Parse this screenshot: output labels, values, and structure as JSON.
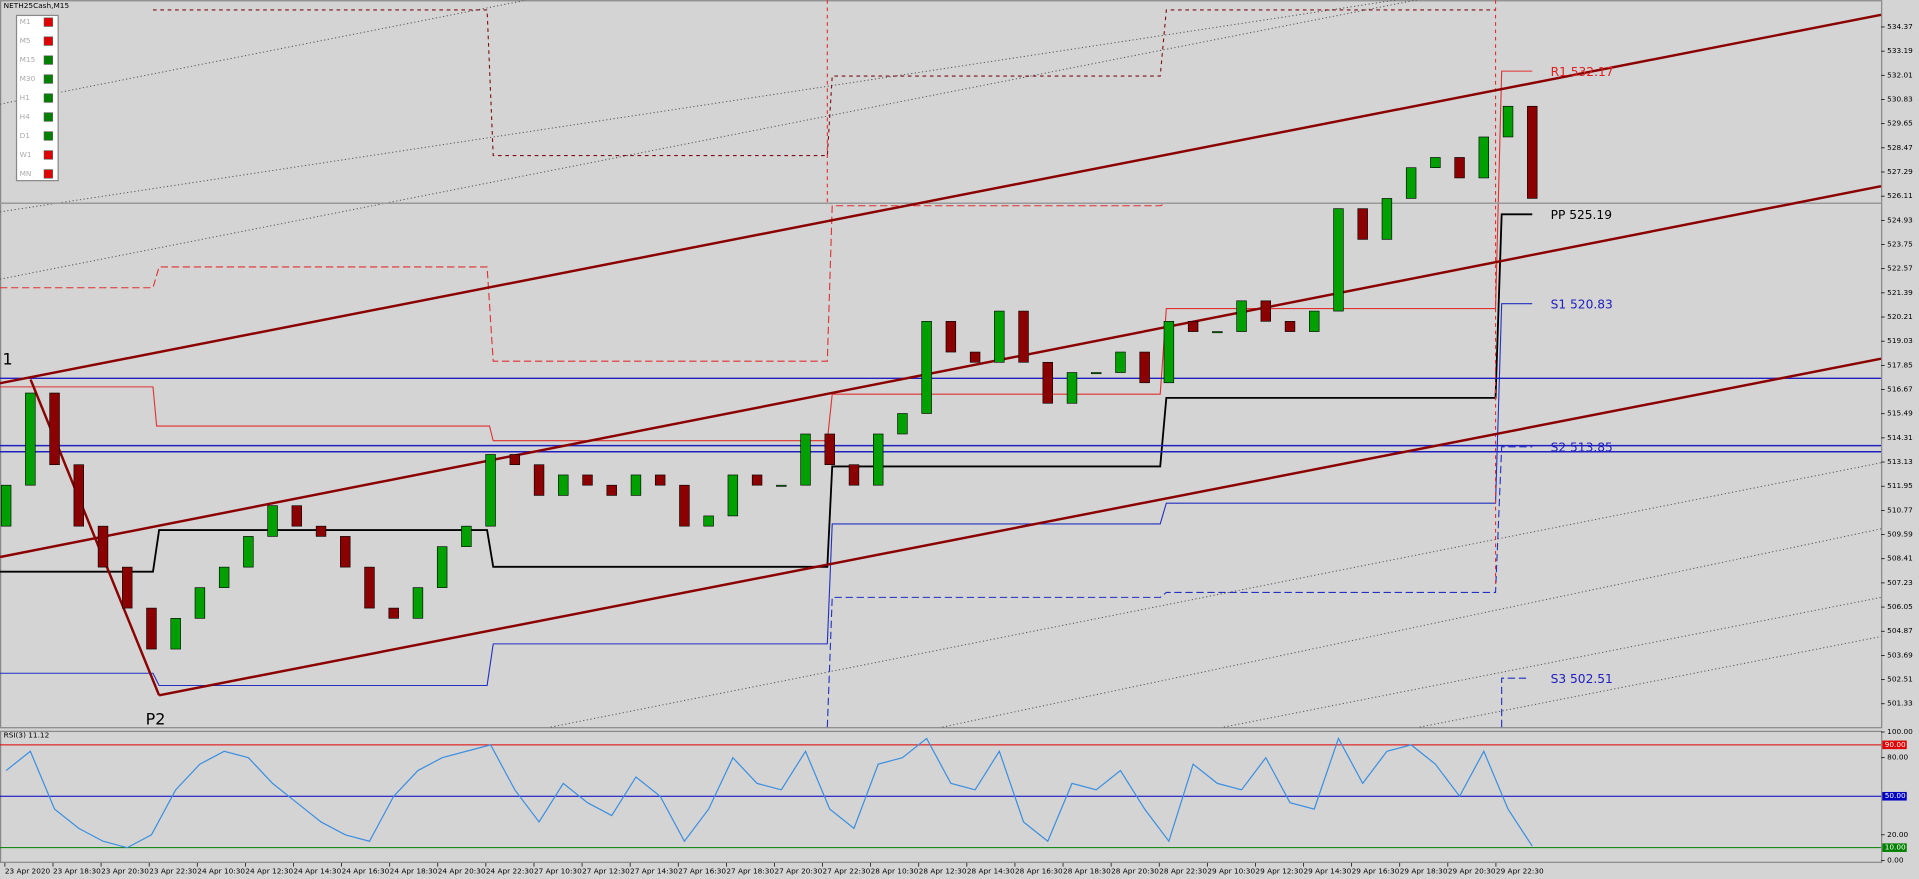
{
  "chart_data": {
    "type": "candlestick",
    "symbol": "NETH25Cash,M15",
    "timeframes": [
      {
        "label": "M1",
        "color": "#e00000"
      },
      {
        "label": "M5",
        "color": "#e00000"
      },
      {
        "label": "M15",
        "color": "#008000"
      },
      {
        "label": "M30",
        "color": "#008000"
      },
      {
        "label": "H1",
        "color": "#008000"
      },
      {
        "label": "H4",
        "color": "#008000"
      },
      {
        "label": "D1",
        "color": "#008000"
      },
      {
        "label": "W1",
        "color": "#e00000"
      },
      {
        "label": "MN",
        "color": "#e00000"
      }
    ],
    "open": 510,
    "close": [
      512,
      516.5,
      513,
      510,
      508,
      506,
      504,
      505.5,
      507,
      508,
      509.5,
      511,
      510,
      509.5,
      508,
      506,
      505.5,
      507,
      509,
      510,
      513.5,
      513,
      511.5,
      512.5,
      512,
      511.5,
      512.5,
      512,
      510,
      510.5,
      512.5,
      512,
      512,
      514.5,
      513,
      512,
      514.5,
      515.5,
      520,
      518.5,
      518,
      520.5,
      518,
      516,
      517.5,
      517.5,
      518.5,
      517,
      520,
      519.5,
      519.5,
      521,
      520,
      519.5,
      520.5,
      525.5,
      524,
      526,
      527.5,
      528,
      527,
      529,
      530.5,
      526
    ],
    "up_color": "#00a000",
    "down_color": "#8b0000",
    "ylim": [
      500.19,
      535.68
    ],
    "yticks": [
      534.37,
      533.19,
      532.01,
      530.83,
      529.65,
      528.47,
      527.29,
      526.11,
      524.93,
      523.75,
      522.57,
      521.39,
      520.21,
      519.03,
      517.85,
      516.67,
      515.49,
      514.31,
      513.13,
      511.95,
      510.77,
      509.59,
      508.41,
      507.23,
      506.05,
      504.87,
      503.69,
      502.51,
      501.33
    ],
    "pivots": [
      "R1 532.17",
      "PP 525.19",
      "S1 520.83",
      "S2 513.85",
      "S3 502.51"
    ],
    "annotations": [
      "1",
      "P2"
    ],
    "time_labels": [
      "23 Apr 2020",
      "23 Apr 18:30",
      "23 Apr 20:30",
      "23 Apr 22:30",
      "24 Apr 10:30",
      "24 Apr 12:30",
      "24 Apr 14:30",
      "24 Apr 16:30",
      "24 Apr 18:30",
      "24 Apr 20:30",
      "24 Apr 22:30",
      "27 Apr 10:30",
      "27 Apr 12:30",
      "27 Apr 14:30",
      "27 Apr 16:30",
      "27 Apr 18:30",
      "27 Apr 20:30",
      "27 Apr 22:30",
      "28 Apr 10:30",
      "28 Apr 12:30",
      "28 Apr 14:30",
      "28 Apr 16:30",
      "28 Apr 18:30",
      "28 Apr 20:30",
      "28 Apr 22:30",
      "29 Apr 10:30",
      "29 Apr 12:30",
      "29 Apr 14:30",
      "29 Apr 16:30",
      "29 Apr 18:30",
      "29 Apr 20:30",
      "29 Apr 22:30"
    ],
    "rsi": {
      "title": "RSI(3) 11.12",
      "color": "#3c8fe0",
      "values": [
        70,
        85,
        40,
        25,
        15,
        10,
        20,
        55,
        75,
        85,
        80,
        60,
        45,
        30,
        20,
        15,
        50,
        70,
        80,
        85,
        90,
        55,
        30,
        60,
        45,
        35,
        65,
        50,
        15,
        40,
        80,
        60,
        55,
        85,
        40,
        25,
        75,
        80,
        95,
        60,
        55,
        85,
        30,
        15,
        60,
        55,
        70,
        40,
        15,
        75,
        60,
        55,
        80,
        45,
        40,
        95,
        60,
        85,
        90,
        75,
        50,
        85,
        40,
        11.12
      ],
      "ylim": [
        0,
        100
      ],
      "yticks": [
        {
          "value": 100,
          "label": "100.00"
        },
        {
          "value": 80,
          "label": "80.00"
        },
        {
          "value": 20,
          "label": "20.00"
        },
        {
          "value": 0,
          "label": "0.00"
        }
      ],
      "levels": [
        {
          "value": 90,
          "label": "90.00",
          "color": "#e00000"
        },
        {
          "value": 50,
          "label": "50.00",
          "color": "#0000c0"
        },
        {
          "value": 10,
          "label": "10.00",
          "color": "#008000"
        }
      ]
    }
  }
}
